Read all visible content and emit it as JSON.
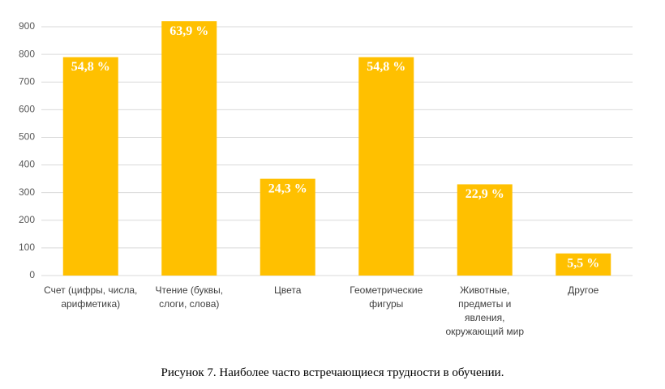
{
  "chart_data": {
    "type": "bar",
    "categories": [
      "Счет (цифры, числа, арифметика)",
      "Чтение (буквы, слоги, слова)",
      "Цвета",
      "Геометрические фигуры",
      "Животные, предметы и явления, окружающий мир",
      "Другое"
    ],
    "values": [
      790,
      920,
      350,
      790,
      330,
      80
    ],
    "bar_labels": [
      "54,8 %",
      "63,9 %",
      "24,3 %",
      "54,8 %",
      "22,9 %",
      "5,5 %"
    ],
    "color": "#ffc000",
    "ylim": [
      0,
      900
    ],
    "yticks": [
      0,
      100,
      200,
      300,
      400,
      500,
      600,
      700,
      800,
      900
    ],
    "grid": true,
    "caption": "Рисунок 7. Наиболее часто встречающиеся трудности в обучении."
  }
}
